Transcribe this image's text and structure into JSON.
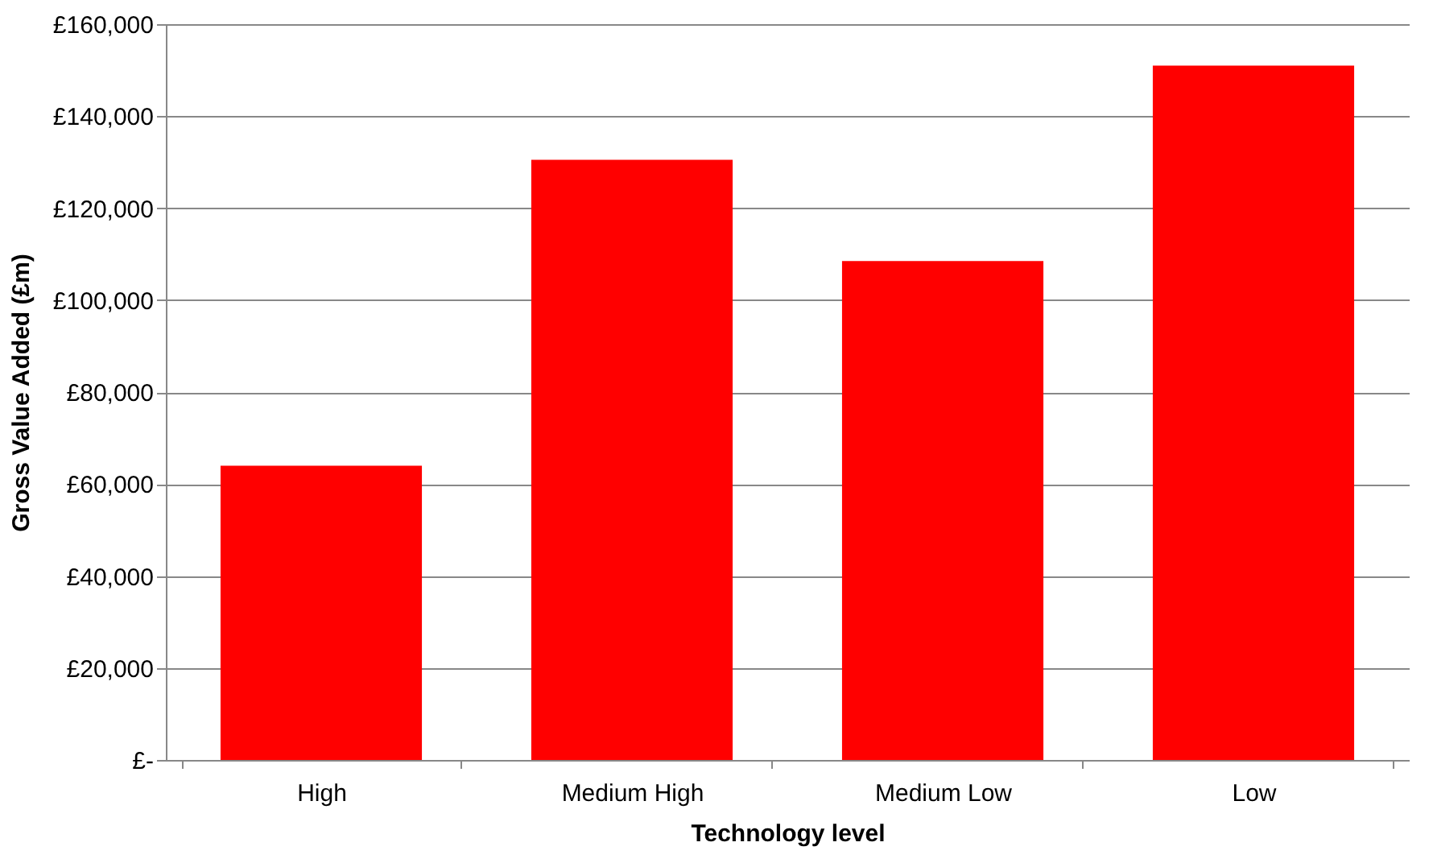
{
  "chart_data": {
    "type": "bar",
    "xlabel": "Technology level",
    "ylabel": "Gross Value Added (£m)",
    "categories": [
      "High",
      "Medium High",
      "Medium Low",
      "Low"
    ],
    "values": [
      64000,
      130500,
      108500,
      151000
    ],
    "color": "#ff0000",
    "ylim": [
      0,
      160000
    ],
    "yticks": [
      {
        "value": 0,
        "label": "£-"
      },
      {
        "value": 20000,
        "label": "£20,000"
      },
      {
        "value": 40000,
        "label": "£40,000"
      },
      {
        "value": 60000,
        "label": "£60,000"
      },
      {
        "value": 80000,
        "label": "£80,000"
      },
      {
        "value": 100000,
        "label": "£100,000"
      },
      {
        "value": 120000,
        "label": "£120,000"
      },
      {
        "value": 140000,
        "label": "£140,000"
      },
      {
        "value": 160000,
        "label": "£160,000"
      }
    ],
    "grid": "y"
  }
}
